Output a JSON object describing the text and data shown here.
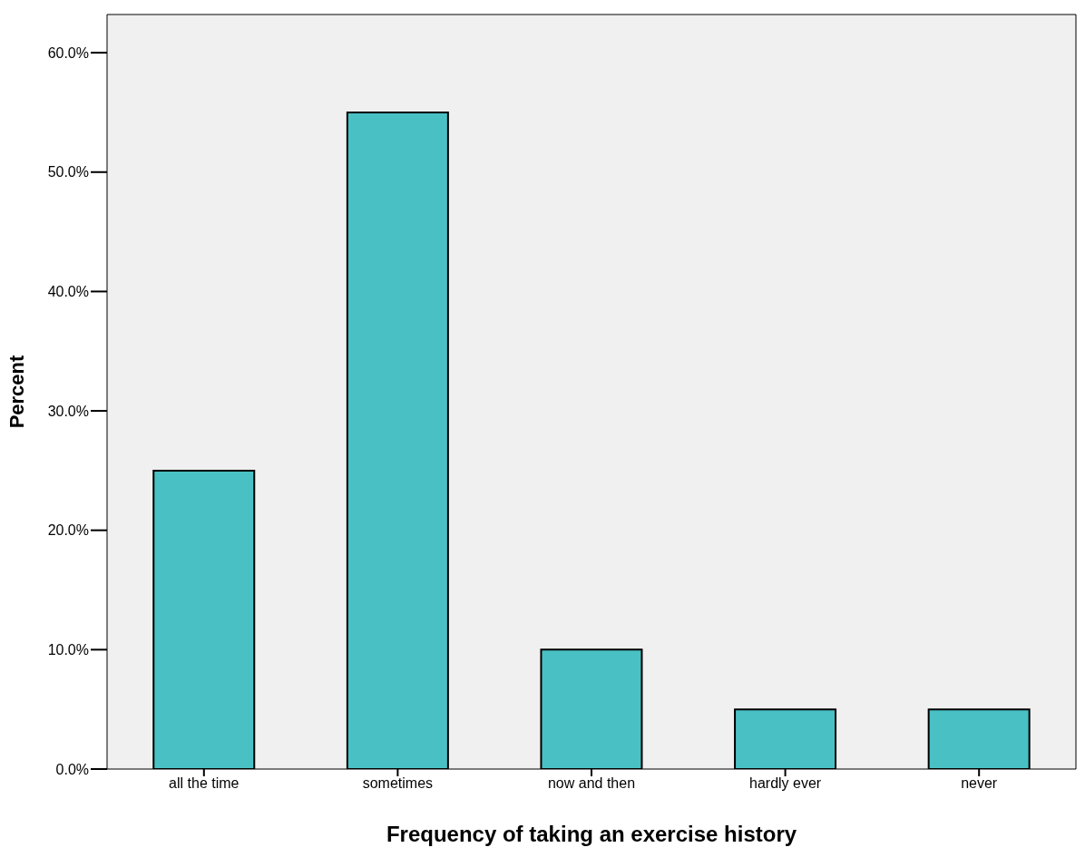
{
  "chart_data": {
    "type": "bar",
    "xlabel": "Frequency of taking an exercise history",
    "ylabel": "Percent",
    "categories": [
      "all the time",
      "sometimes",
      "now and then",
      "hardly ever",
      "never"
    ],
    "values": [
      25,
      55,
      10,
      5,
      5
    ],
    "color": "#49c1c4",
    "ylim": [
      0,
      63.2
    ],
    "yticks": [
      {
        "value": 0,
        "label": "0.0%"
      },
      {
        "value": 10,
        "label": "10.0%"
      },
      {
        "value": 20,
        "label": "20.0%"
      },
      {
        "value": 30,
        "label": "30.0%"
      },
      {
        "value": 40,
        "label": "40.0%"
      },
      {
        "value": 50,
        "label": "50.0%"
      },
      {
        "value": 60,
        "label": "60.0%"
      }
    ]
  }
}
